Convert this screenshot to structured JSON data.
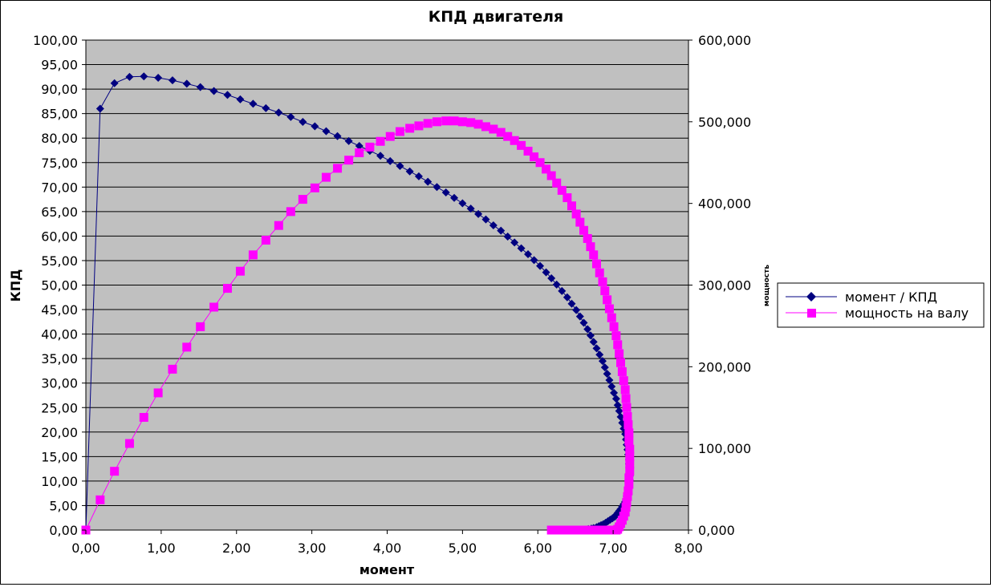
{
  "chart_data": {
    "type": "scatter",
    "title": "КПД двигателя",
    "xlabel": "момент",
    "ylabel": "КПД",
    "y2label": "мощность",
    "xlim": [
      0,
      8
    ],
    "ylim": [
      0,
      100
    ],
    "y2lim": [
      0,
      600000
    ],
    "x_ticks": [
      "0,00",
      "1,00",
      "2,00",
      "3,00",
      "4,00",
      "5,00",
      "6,00",
      "7,00",
      "8,00"
    ],
    "y_ticks": [
      "0,00",
      "5,00",
      "10,00",
      "15,00",
      "20,00",
      "25,00",
      "30,00",
      "35,00",
      "40,00",
      "45,00",
      "50,00",
      "55,00",
      "60,00",
      "65,00",
      "70,00",
      "75,00",
      "80,00",
      "85,00",
      "90,00",
      "95,00",
      "100,00"
    ],
    "y2_ticks": [
      "0,000",
      "100,000",
      "200,000",
      "300,000",
      "400,000",
      "500,000",
      "600,000"
    ],
    "grid": true,
    "plot_background": "#c0c0c0",
    "legend_position": "right",
    "series": [
      {
        "name": "момент / КПД",
        "axis": "left",
        "color": "#000080",
        "marker": "diamond",
        "x": [
          0.0,
          0.19,
          0.38,
          0.58,
          0.77,
          0.96,
          1.15,
          1.34,
          1.52,
          1.7,
          1.88,
          2.05,
          2.22,
          2.39,
          2.56,
          2.72,
          2.88,
          3.04,
          3.19,
          3.34,
          3.49,
          3.63,
          3.77,
          3.91,
          4.04,
          4.17,
          4.3,
          4.42,
          4.54,
          4.66,
          4.78,
          4.89,
          5.0,
          5.11,
          5.21,
          5.31,
          5.41,
          5.51,
          5.6,
          5.69,
          5.78,
          5.87,
          5.95,
          6.03,
          6.11,
          6.18,
          6.25,
          6.32,
          6.39,
          6.45,
          6.51,
          6.56,
          6.61,
          6.66,
          6.7,
          6.74,
          6.78,
          6.82,
          6.86,
          6.89,
          6.92,
          6.95,
          6.98,
          7.01,
          7.04,
          7.06,
          7.08,
          7.1,
          7.12,
          7.14,
          7.16,
          7.17,
          7.18,
          7.19,
          7.2,
          7.21,
          7.21,
          7.22,
          7.22,
          7.22,
          7.22,
          7.21,
          7.21,
          7.2,
          7.19,
          7.18,
          7.17,
          7.16,
          7.14,
          7.12,
          7.1,
          7.08,
          7.06,
          7.04,
          7.02,
          6.99,
          6.96,
          6.93,
          6.9,
          6.87,
          6.84,
          6.81,
          6.78,
          6.74,
          6.71,
          6.67,
          6.64,
          6.6,
          6.57,
          6.53,
          6.49,
          6.46,
          6.42,
          6.38,
          6.35,
          6.31,
          6.28,
          6.24,
          6.21,
          6.18
        ],
        "y": [
          0.0,
          86.0,
          91.2,
          92.5,
          92.6,
          92.3,
          91.8,
          91.1,
          90.4,
          89.6,
          88.8,
          87.9,
          87.0,
          86.1,
          85.2,
          84.3,
          83.3,
          82.4,
          81.4,
          80.4,
          79.4,
          78.4,
          77.4,
          76.4,
          75.3,
          74.3,
          73.2,
          72.2,
          71.1,
          70.0,
          68.9,
          67.8,
          66.7,
          65.6,
          64.5,
          63.4,
          62.2,
          61.1,
          59.9,
          58.7,
          57.5,
          56.3,
          55.1,
          53.9,
          52.6,
          51.4,
          50.1,
          48.8,
          47.5,
          46.2,
          44.9,
          43.6,
          42.3,
          41.0,
          39.7,
          38.4,
          37.1,
          35.8,
          34.5,
          33.2,
          31.9,
          30.6,
          29.3,
          28.0,
          26.8,
          25.5,
          24.3,
          23.1,
          21.9,
          20.7,
          19.6,
          18.5,
          17.4,
          16.4,
          15.4,
          14.4,
          13.5,
          12.6,
          11.8,
          11.0,
          10.2,
          9.5,
          8.8,
          8.1,
          7.5,
          6.9,
          6.3,
          5.8,
          5.3,
          4.8,
          4.3,
          3.9,
          3.5,
          3.1,
          2.7,
          2.4,
          2.1,
          1.8,
          1.5,
          1.2,
          1.0,
          0.8,
          0.6,
          0.4,
          0.3,
          0.2,
          0.1,
          0.0,
          0.0,
          0.0,
          0.0,
          0.0,
          0.0,
          0.0,
          0.0,
          0.0,
          0.0,
          0.0,
          0.0,
          0.0
        ]
      },
      {
        "name": "мощность на валу",
        "axis": "right",
        "color": "#ff00ff",
        "marker": "square",
        "x": [
          0.0,
          0.19,
          0.38,
          0.58,
          0.77,
          0.96,
          1.15,
          1.34,
          1.52,
          1.7,
          1.88,
          2.05,
          2.22,
          2.39,
          2.56,
          2.72,
          2.88,
          3.04,
          3.19,
          3.34,
          3.49,
          3.63,
          3.77,
          3.91,
          4.04,
          4.17,
          4.3,
          4.42,
          4.54,
          4.66,
          4.78,
          4.89,
          5.0,
          5.11,
          5.21,
          5.31,
          5.41,
          5.51,
          5.6,
          5.69,
          5.78,
          5.87,
          5.95,
          6.03,
          6.11,
          6.18,
          6.25,
          6.32,
          6.39,
          6.45,
          6.51,
          6.56,
          6.61,
          6.66,
          6.7,
          6.74,
          6.78,
          6.82,
          6.86,
          6.89,
          6.92,
          6.95,
          6.98,
          7.01,
          7.04,
          7.06,
          7.08,
          7.1,
          7.12,
          7.14,
          7.16,
          7.17,
          7.18,
          7.19,
          7.2,
          7.21,
          7.21,
          7.22,
          7.22,
          7.22,
          7.22,
          7.21,
          7.21,
          7.2,
          7.19,
          7.18,
          7.17,
          7.16,
          7.14,
          7.12,
          7.1,
          7.08,
          7.06,
          7.04,
          7.02,
          6.99,
          6.96,
          6.93,
          6.9,
          6.87,
          6.84,
          6.81,
          6.78,
          6.74,
          6.71,
          6.67,
          6.64,
          6.6,
          6.57,
          6.53,
          6.49,
          6.46,
          6.42,
          6.38,
          6.35,
          6.31,
          6.28,
          6.24,
          6.21,
          6.18
        ],
        "y": [
          0,
          37000,
          72000,
          106000,
          138000,
          168000,
          197000,
          224000,
          249000,
          273000,
          296000,
          317000,
          337000,
          355000,
          373000,
          390000,
          405000,
          419000,
          432000,
          443000,
          453000,
          462000,
          469000,
          476000,
          482000,
          488000,
          492000,
          495000,
          498000,
          500000,
          501000,
          501000,
          500000,
          499000,
          497000,
          494000,
          491000,
          487000,
          482000,
          477000,
          471000,
          464000,
          457000,
          450000,
          442000,
          434000,
          425000,
          416000,
          407000,
          397000,
          387000,
          377000,
          367000,
          357000,
          347000,
          337000,
          326000,
          315000,
          304000,
          293000,
          282000,
          271000,
          260000,
          249000,
          238000,
          227000,
          216000,
          205000,
          194000,
          183000,
          172000,
          161000,
          150000,
          139000,
          129000,
          119000,
          109000,
          99000,
          90000,
          81000,
          72000,
          64000,
          56000,
          48000,
          41000,
          34000,
          28000,
          22000,
          17000,
          12000,
          8000,
          4000,
          1000,
          0,
          0,
          0,
          0,
          0,
          0,
          0,
          0,
          0,
          0,
          0,
          0,
          0,
          0,
          0,
          0,
          0,
          0,
          0,
          0,
          0,
          0,
          0,
          0,
          0,
          0,
          0
        ]
      }
    ]
  }
}
